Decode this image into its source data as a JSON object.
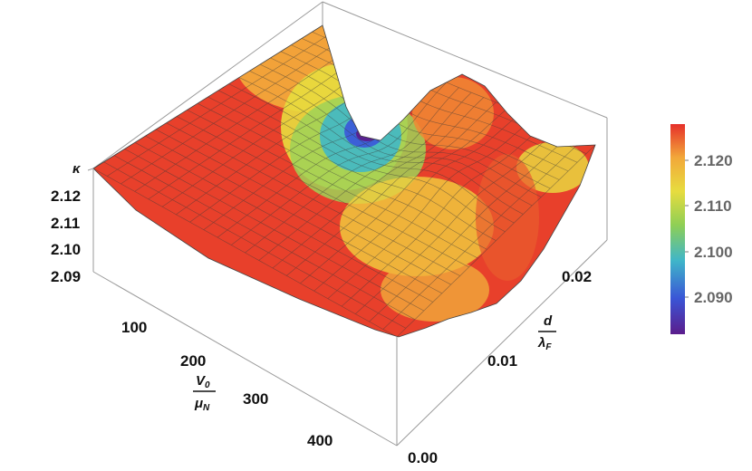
{
  "chart_data": {
    "type": "surface3d",
    "title": "",
    "z_axis": {
      "label": "κ",
      "ticks": [
        "2.09",
        "2.10",
        "2.11",
        "2.12"
      ],
      "range": [
        2.082,
        2.128
      ]
    },
    "x_axis": {
      "label_num": "V",
      "label_num_sub": "0",
      "label_den": "μ",
      "label_den_sub": "N",
      "ticks": [
        "100",
        "200",
        "300",
        "400"
      ],
      "range": [
        0,
        500
      ]
    },
    "y_axis": {
      "label_num": "d",
      "label_den": "λ",
      "label_den_sub": "F",
      "ticks": [
        "0.00",
        "0.01",
        "0.02"
      ],
      "range": [
        0,
        0.028
      ]
    },
    "colorbar": {
      "ticks": [
        "2.120",
        "2.110",
        "2.100",
        "2.090"
      ],
      "range": [
        2.082,
        2.128
      ],
      "colormap": [
        "#5b1d8c",
        "#3a55d6",
        "#3fb6c9",
        "#8fcf55",
        "#e7dc3f",
        "#f2a83a",
        "#e6302a"
      ]
    },
    "surface_samples": {
      "note_free_grid": true,
      "x": [
        0,
        125,
        250,
        375,
        500
      ],
      "y": [
        0,
        0.007,
        0.014,
        0.021,
        0.028
      ],
      "z": [
        [
          2.126,
          2.124,
          2.118,
          2.11,
          2.112
        ],
        [
          2.126,
          2.121,
          2.11,
          2.113,
          2.118
        ],
        [
          2.126,
          2.118,
          2.1,
          2.121,
          2.119
        ],
        [
          2.126,
          2.114,
          2.089,
          2.124,
          2.116
        ],
        [
          2.126,
          2.11,
          2.108,
          2.125,
          2.113
        ]
      ]
    }
  }
}
